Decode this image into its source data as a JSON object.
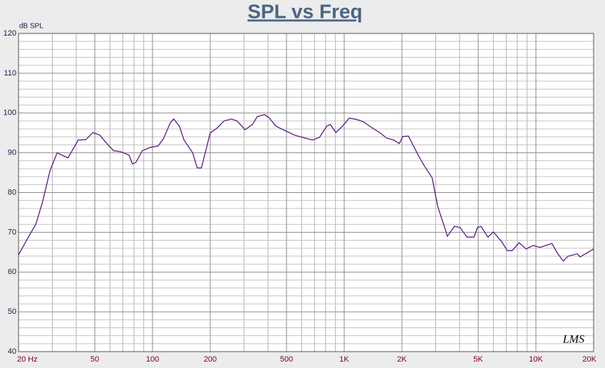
{
  "chart_data": {
    "type": "line",
    "title": "SPL vs Freq",
    "y_label": "dB SPL",
    "watermark": "LMS",
    "log_x": true,
    "grid": true,
    "xlim": [
      20,
      20000
    ],
    "ylim": [
      40,
      120
    ],
    "xticks": [
      {
        "value": 20,
        "label": "20 Hz"
      },
      50,
      100,
      200,
      500,
      {
        "value": 1000,
        "label": "1K"
      },
      {
        "value": 2000,
        "label": "2K"
      },
      {
        "value": 5000,
        "label": "5K"
      },
      {
        "value": 10000,
        "label": "10K"
      },
      {
        "value": 20000,
        "label": "20K"
      }
    ],
    "yticks": [
      40,
      50,
      60,
      70,
      80,
      90,
      100,
      110,
      120
    ],
    "x_minor_grid": [
      30,
      40,
      60,
      70,
      80,
      90,
      300,
      400,
      600,
      700,
      800,
      900,
      3000,
      4000,
      6000,
      7000,
      8000,
      9000
    ],
    "y_minor_grid": [
      42,
      44,
      46,
      48,
      52,
      54,
      56,
      58,
      62,
      64,
      66,
      68,
      72,
      74,
      76,
      78,
      82,
      84,
      86,
      88,
      92,
      94,
      96,
      98,
      102,
      104,
      106,
      108,
      112,
      114,
      116,
      118
    ],
    "x": [
      20,
      22.5,
      24.6,
      26.6,
      29.2,
      31.8,
      36.2,
      41,
      44.9,
      48.9,
      53.2,
      57.8,
      62.8,
      68,
      75.5,
      78.5,
      82,
      88.4,
      97.9,
      106.8,
      114,
      124,
      129,
      138,
      146,
      162,
      171,
      180,
      200,
      217,
      236,
      258,
      276,
      304,
      332,
      352,
      384,
      404,
      440,
      495,
      553,
      627,
      684,
      744,
      811,
      846,
      905,
      976,
      1062,
      1156,
      1259,
      1405,
      1530,
      1665,
      1813,
      1939,
      2022,
      2163,
      2433,
      2603,
      2876,
      3075,
      3343,
      3455,
      3758,
      4020,
      4370,
      4752,
      4955,
      5170,
      5620,
      6000,
      6640,
      7090,
      7520,
      8180,
      8890,
      9670,
      10510,
      12130,
      12970,
      13880,
      14730,
      16450,
      17000,
      20000
    ],
    "series": [
      {
        "color": "#5c1a86",
        "values": [
          64.3,
          68.8,
          72,
          77.4,
          85.5,
          90,
          88.7,
          93.2,
          93.3,
          95.1,
          94.4,
          92.3,
          90.5,
          90.3,
          89.4,
          87.2,
          87.6,
          90.5,
          91.4,
          91.7,
          93.5,
          97.6,
          98.5,
          96.7,
          93.2,
          90,
          86.2,
          86.2,
          95,
          96.2,
          98,
          98.5,
          98,
          95.8,
          97.1,
          99.1,
          99.6,
          98.9,
          96.7,
          95.5,
          94.4,
          93.7,
          93.2,
          93.9,
          96.7,
          97.1,
          95.1,
          96.6,
          98.7,
          98.4,
          97.8,
          96.2,
          95.1,
          93.7,
          93.2,
          92.3,
          94.1,
          94.2,
          89.4,
          86.9,
          83.7,
          76.5,
          71.2,
          69,
          71.5,
          71.2,
          68.8,
          68.8,
          71.2,
          71.5,
          68.8,
          70.1,
          67.6,
          65.4,
          65.4,
          67.4,
          65.8,
          66.7,
          66.2,
          67.2,
          64.7,
          62.8,
          64,
          64.6,
          63.8,
          65.8
        ]
      }
    ]
  }
}
